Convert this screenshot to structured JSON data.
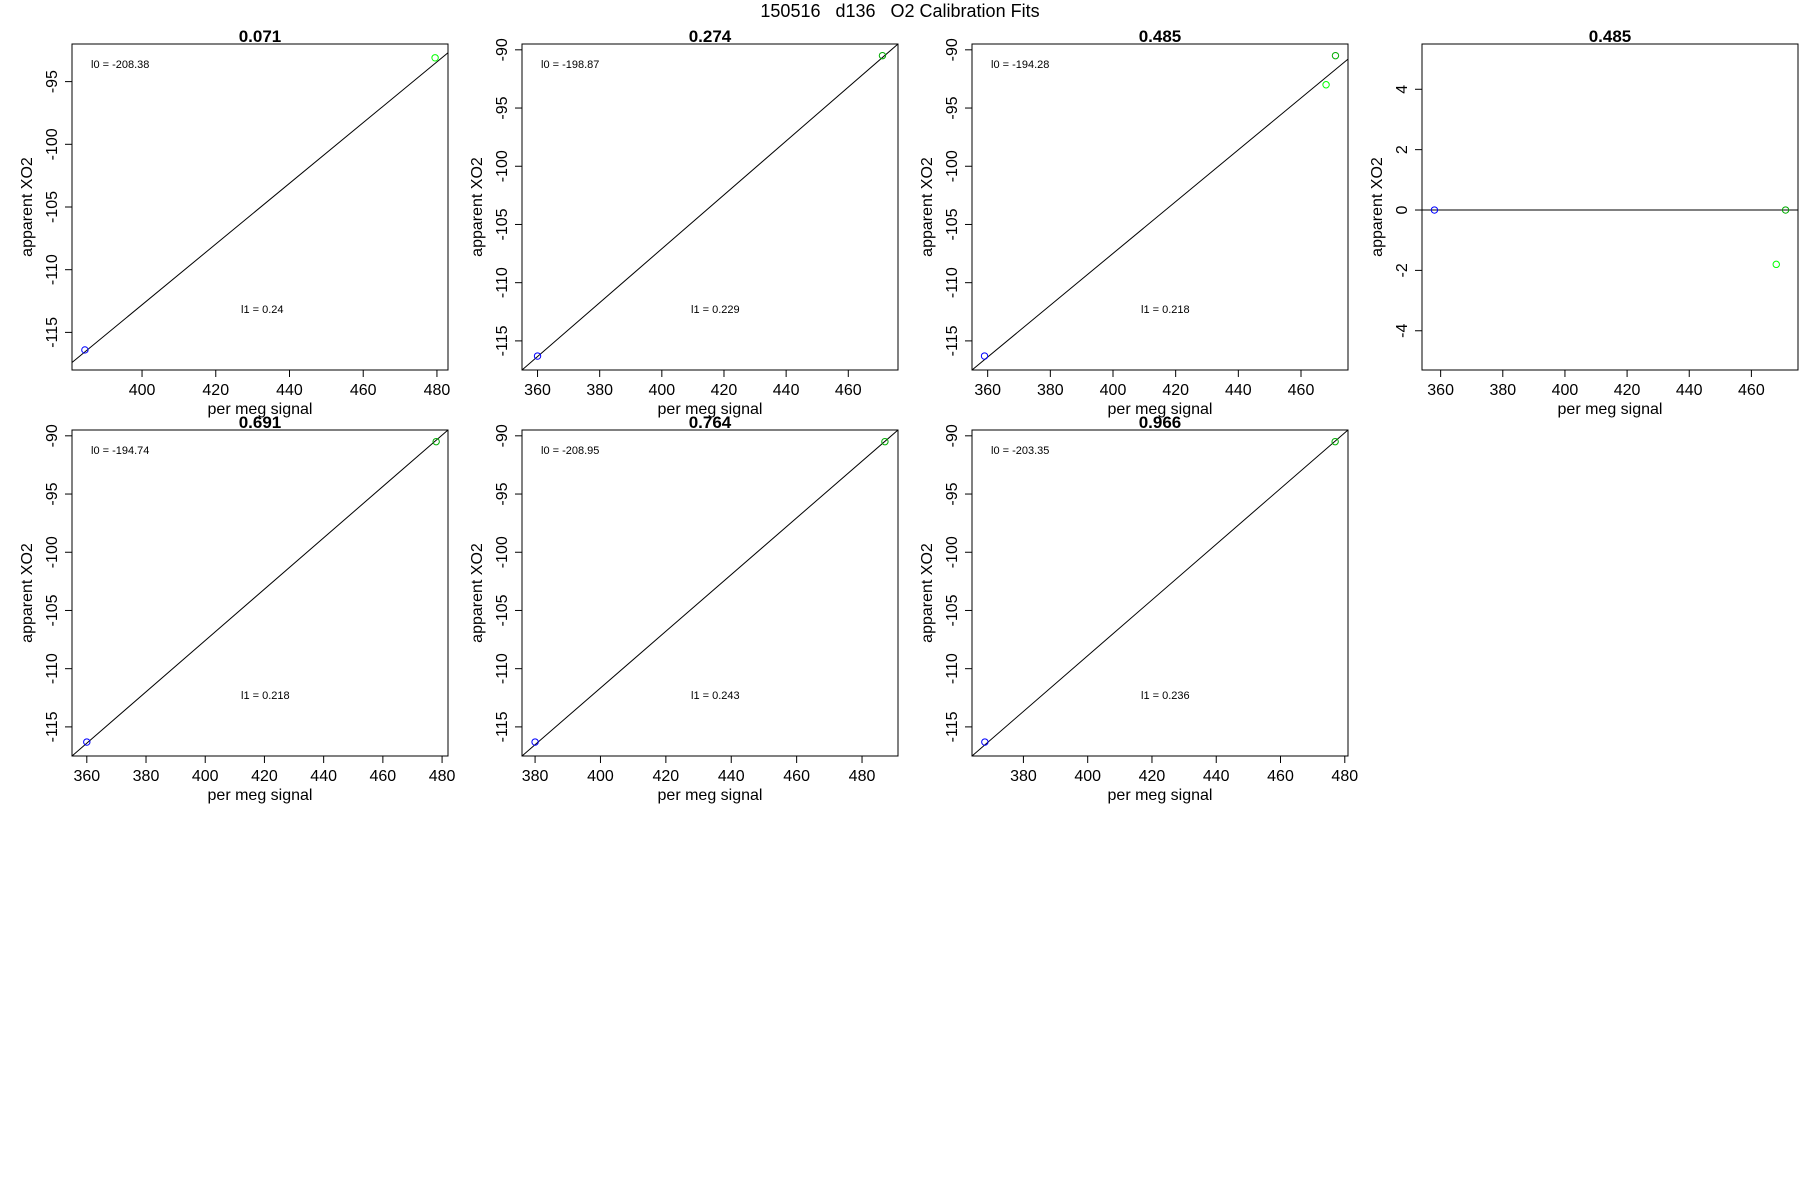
{
  "page": {
    "title": "150516   d136   O2 Calibration Fits"
  },
  "chart_data": [
    {
      "type": "scatter",
      "title": "0.071",
      "xlabel": "per meg signal",
      "ylabel": "apparent XO2",
      "xlim": [
        381,
        483
      ],
      "ylim": [
        -118,
        -92
      ],
      "xticks": [
        400,
        420,
        440,
        460,
        480
      ],
      "yticks": [
        -95,
        -100,
        -105,
        -110,
        -115
      ],
      "points": [
        {
          "x": 384.5,
          "y": -116.4,
          "color": "#0000ff"
        },
        {
          "x": 479.5,
          "y": -93.1,
          "color": "#00ff00"
        }
      ],
      "fit_line": {
        "from": [
          381,
          -117.4
        ],
        "to": [
          483,
          -92.7
        ]
      },
      "annotation_l0": "l0 =  -208.38",
      "annotation_l1": "l1 =  0.24"
    },
    {
      "type": "scatter",
      "title": "0.274",
      "xlabel": "per meg signal",
      "ylabel": "apparent XO2",
      "xlim": [
        355,
        476
      ],
      "ylim": [
        -117.5,
        -89.5
      ],
      "xticks": [
        360,
        380,
        400,
        420,
        440,
        460
      ],
      "yticks": [
        -90,
        -95,
        -100,
        -105,
        -110,
        -115
      ],
      "points": [
        {
          "x": 360,
          "y": -116.3,
          "color": "#0000ff"
        },
        {
          "x": 471,
          "y": -90.5,
          "color": "#00aa00"
        }
      ],
      "fit_line": {
        "from": [
          355,
          -117.5
        ],
        "to": [
          476,
          -89.5
        ]
      },
      "annotation_l0": "l0 =  -198.87",
      "annotation_l1": "l1 =  0.229"
    },
    {
      "type": "scatter",
      "title": "0.485",
      "xlabel": "per meg signal",
      "ylabel": "apparent XO2",
      "xlim": [
        355,
        475
      ],
      "ylim": [
        -117.5,
        -89.5
      ],
      "xticks": [
        360,
        380,
        400,
        420,
        440,
        460
      ],
      "yticks": [
        -90,
        -95,
        -100,
        -105,
        -110,
        -115
      ],
      "points": [
        {
          "x": 359,
          "y": -116.3,
          "color": "#0000ff"
        },
        {
          "x": 471,
          "y": -90.5,
          "color": "#00aa00"
        },
        {
          "x": 468,
          "y": -93.0,
          "color": "#00ff00"
        }
      ],
      "fit_line": {
        "from": [
          355,
          -117.5
        ],
        "to": [
          475,
          -90.8
        ]
      },
      "annotation_l0": "l0 =  -194.28",
      "annotation_l1": "l1 =  0.218"
    },
    {
      "type": "scatter",
      "title": "0.485",
      "xlabel": "per meg signal",
      "ylabel": "apparent XO2",
      "xlim": [
        354,
        475
      ],
      "ylim": [
        -5.3,
        5.5
      ],
      "xticks": [
        360,
        380,
        400,
        420,
        440,
        460
      ],
      "yticks": [
        4,
        2,
        0,
        -2,
        -4
      ],
      "points": [
        {
          "x": 358,
          "y": 0,
          "color": "#0000ff"
        },
        {
          "x": 471,
          "y": 0,
          "color": "#00aa00"
        },
        {
          "x": 468,
          "y": -1.8,
          "color": "#00ff00"
        }
      ],
      "fit_line": {
        "from": [
          354,
          0
        ],
        "to": [
          475,
          0
        ]
      },
      "annotation_l0": "",
      "annotation_l1": ""
    },
    {
      "type": "scatter",
      "title": "0.691",
      "xlabel": "per meg signal",
      "ylabel": "apparent XO2",
      "xlim": [
        355,
        482
      ],
      "ylim": [
        -117.5,
        -89.5
      ],
      "xticks": [
        360,
        380,
        400,
        420,
        440,
        460,
        480
      ],
      "yticks": [
        -90,
        -95,
        -100,
        -105,
        -110,
        -115
      ],
      "points": [
        {
          "x": 360,
          "y": -116.3,
          "color": "#0000ff"
        },
        {
          "x": 478,
          "y": -90.5,
          "color": "#00aa00"
        }
      ],
      "fit_line": {
        "from": [
          355,
          -117.5
        ],
        "to": [
          482,
          -89.5
        ]
      },
      "annotation_l0": "l0 =  -194.74",
      "annotation_l1": "l1 =  0.218"
    },
    {
      "type": "scatter",
      "title": "0.764",
      "xlabel": "per meg signal",
      "ylabel": "apparent XO2",
      "xlim": [
        376,
        491
      ],
      "ylim": [
        -117.5,
        -89.5
      ],
      "xticks": [
        380,
        400,
        420,
        440,
        460,
        480
      ],
      "yticks": [
        -90,
        -95,
        -100,
        -105,
        -110,
        -115
      ],
      "points": [
        {
          "x": 380,
          "y": -116.3,
          "color": "#0000ff"
        },
        {
          "x": 487,
          "y": -90.5,
          "color": "#00aa00"
        }
      ],
      "fit_line": {
        "from": [
          376,
          -117.5
        ],
        "to": [
          491,
          -89.5
        ]
      },
      "annotation_l0": "l0 =  -208.95",
      "annotation_l1": "l1 =  0.243"
    },
    {
      "type": "scatter",
      "title": "0.966",
      "xlabel": "per meg signal",
      "ylabel": "apparent XO2",
      "xlim": [
        364,
        481
      ],
      "ylim": [
        -117.5,
        -89.5
      ],
      "xticks": [
        380,
        400,
        420,
        440,
        460,
        480
      ],
      "yticks": [
        -90,
        -95,
        -100,
        -105,
        -110,
        -115
      ],
      "points": [
        {
          "x": 368,
          "y": -116.3,
          "color": "#0000ff"
        },
        {
          "x": 477,
          "y": -90.5,
          "color": "#00aa00"
        }
      ],
      "fit_line": {
        "from": [
          364,
          -117.5
        ],
        "to": [
          481,
          -89.5
        ]
      },
      "annotation_l0": "l0 =  -203.35",
      "annotation_l1": "l1 =  0.236"
    }
  ]
}
